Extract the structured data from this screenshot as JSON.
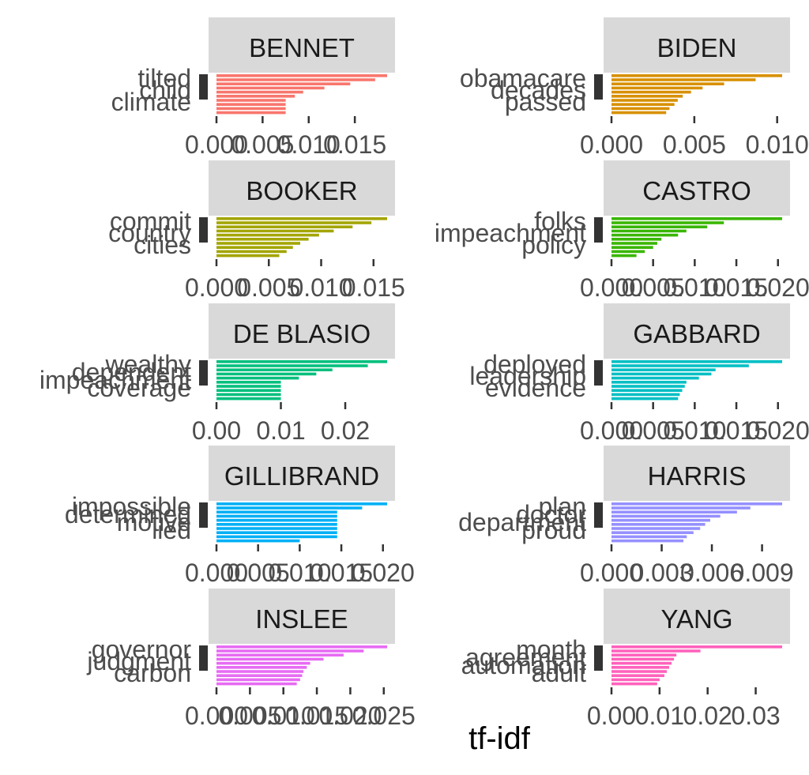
{
  "chart_data": {
    "type": "bar",
    "orientation": "horizontal",
    "xlabel": "tf-idf",
    "facet_rows": 5,
    "facet_cols": 2,
    "panels": [
      {
        "title": "BENNET",
        "color": "#F8766D",
        "xlim": [
          0,
          0.0185
        ],
        "ticks": [
          0,
          0.005,
          0.01,
          0.015
        ],
        "tick_labels": [
          "0.000",
          "0.005",
          "0.010",
          "0.015"
        ],
        "visible_labels": [
          "tilted",
          "child",
          "climate"
        ],
        "values": [
          0.0185,
          0.0172,
          0.0145,
          0.0117,
          0.0094,
          0.0085,
          0.0075,
          0.0075,
          0.0075,
          0.0075
        ]
      },
      {
        "title": "BIDEN",
        "color": "#D89000",
        "xlim": [
          0,
          0.0103
        ],
        "ticks": [
          0,
          0.005,
          0.01
        ],
        "tick_labels": [
          "0.000",
          "0.005",
          "0.010"
        ],
        "visible_labels": [
          "obamacare",
          "decades",
          "passed"
        ],
        "values": [
          0.0103,
          0.0087,
          0.0068,
          0.0055,
          0.0048,
          0.0043,
          0.004,
          0.0038,
          0.0035,
          0.0033
        ]
      },
      {
        "title": "BOOKER",
        "color": "#A3A500",
        "xlim": [
          0,
          0.0163
        ],
        "ticks": [
          0,
          0.005,
          0.01,
          0.015
        ],
        "tick_labels": [
          "0.000",
          "0.005",
          "0.010",
          "0.015"
        ],
        "visible_labels": [
          "commit",
          "country",
          "cities"
        ],
        "values": [
          0.0163,
          0.0148,
          0.013,
          0.0112,
          0.0098,
          0.0088,
          0.008,
          0.0073,
          0.0067,
          0.006
        ]
      },
      {
        "title": "CASTRO",
        "color": "#39B600",
        "xlim": [
          0,
          0.0205
        ],
        "ticks": [
          0,
          0.005,
          0.01,
          0.015,
          0.02
        ],
        "tick_labels": [
          "0.000",
          "0.005",
          "0.010",
          "0.015",
          "0.020"
        ],
        "visible_labels": [
          "folks",
          "impeachment",
          "policy"
        ],
        "values": [
          0.0205,
          0.0135,
          0.0115,
          0.009,
          0.008,
          0.006,
          0.0055,
          0.005,
          0.004,
          0.003
        ]
      },
      {
        "title": "DE BLASIO",
        "color": "#00BF7D",
        "xlim": [
          0,
          0.0265
        ],
        "ticks": [
          0,
          0.01,
          0.02
        ],
        "tick_labels": [
          "0.00",
          "0.01",
          "0.02"
        ],
        "visible_labels": [
          "wealthy",
          "dependent",
          "impeachment",
          "coverage"
        ],
        "values": [
          0.0265,
          0.0235,
          0.018,
          0.0155,
          0.0128,
          0.01,
          0.01,
          0.01,
          0.01,
          0.01
        ]
      },
      {
        "title": "GABBARD",
        "color": "#00BFC4",
        "xlim": [
          0,
          0.0205
        ],
        "ticks": [
          0,
          0.005,
          0.01,
          0.015,
          0.02
        ],
        "tick_labels": [
          "0.000",
          "0.005",
          "0.010",
          "0.015",
          "0.020"
        ],
        "visible_labels": [
          "deployed",
          "leadership",
          "evidence"
        ],
        "values": [
          0.0205,
          0.0165,
          0.0125,
          0.012,
          0.0105,
          0.009,
          0.0088,
          0.0085,
          0.0082,
          0.008
        ]
      },
      {
        "title": "GILLIBRAND",
        "color": "#00B0F6",
        "xlim": [
          0,
          0.0205
        ],
        "ticks": [
          0,
          0.005,
          0.01,
          0.015,
          0.02
        ],
        "tick_labels": [
          "0.000",
          "0.005",
          "0.010",
          "0.015",
          "0.020"
        ],
        "visible_labels": [
          "impossible",
          "determined",
          "motive",
          "lied"
        ],
        "values": [
          0.0205,
          0.0175,
          0.0145,
          0.0145,
          0.0145,
          0.0145,
          0.0145,
          0.0145,
          0.0145,
          0.01
        ]
      },
      {
        "title": "HARRIS",
        "color": "#9590FF",
        "xlim": [
          0,
          0.0102
        ],
        "ticks": [
          0,
          0.003,
          0.006,
          0.009
        ],
        "tick_labels": [
          "0.000",
          "0.003",
          "0.006",
          "0.009"
        ],
        "visible_labels": [
          "plan",
          "doctor",
          "department",
          "proud"
        ],
        "values": [
          0.0102,
          0.0083,
          0.0075,
          0.0065,
          0.0059,
          0.0056,
          0.0053,
          0.0049,
          0.0045,
          0.0043
        ]
      },
      {
        "title": "INSLEE",
        "color": "#E76BF3",
        "xlim": [
          0,
          0.0255
        ],
        "ticks": [
          0,
          0.005,
          0.01,
          0.015,
          0.02,
          0.025
        ],
        "tick_labels": [
          "0.000",
          "0.005",
          "0.010",
          "0.015",
          "0.020",
          "0.025"
        ],
        "visible_labels": [
          "governor",
          "judgment",
          "carbon"
        ],
        "values": [
          0.0255,
          0.022,
          0.019,
          0.016,
          0.014,
          0.0135,
          0.013,
          0.0128,
          0.0125,
          0.012
        ]
      },
      {
        "title": "YANG",
        "color": "#FF62BC",
        "xlim": [
          0,
          0.0355
        ],
        "ticks": [
          0,
          0.01,
          0.02,
          0.03
        ],
        "tick_labels": [
          "0.00",
          "0.01",
          "0.02",
          "0.03"
        ],
        "visible_labels": [
          "month",
          "agreement",
          "automation",
          "adult"
        ],
        "values": [
          0.0355,
          0.0185,
          0.0135,
          0.013,
          0.0125,
          0.012,
          0.0115,
          0.011,
          0.01,
          0.0095
        ]
      }
    ]
  }
}
